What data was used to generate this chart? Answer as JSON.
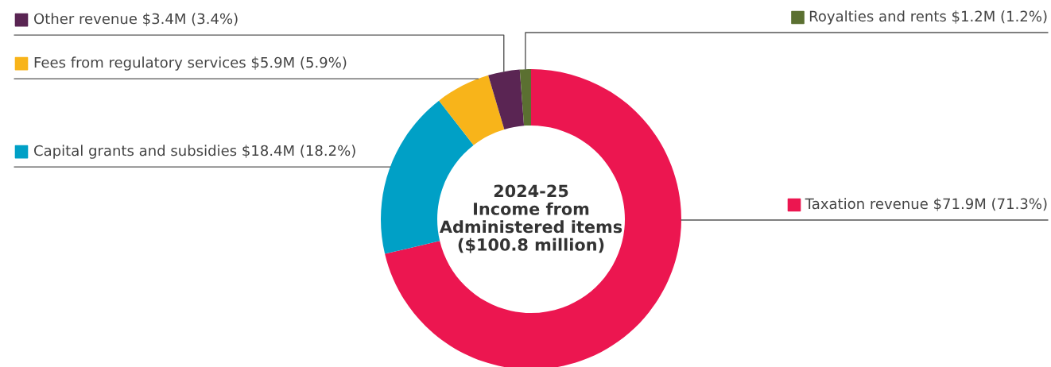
{
  "chart_data": {
    "type": "donut",
    "title": "2024-25\nIncome from\nAdministered items\n($100.8 million)",
    "categories": [
      "Taxation revenue",
      "Capital grants and subsidies",
      "Fees from regulatory services",
      "Other revenue",
      "Royalties and rents"
    ],
    "values": [
      71.3,
      18.2,
      5.9,
      3.4,
      1.2
    ],
    "legend": "left",
    "value_labels": [
      "$71.9M (71.3%)",
      "$18.4M (18.2%)",
      "$5.9M (5.9%)",
      "$3.4M (3.4%)",
      "$1.2M (1.2%)"
    ],
    "colors": [
      "#ec1650",
      "#00a0c6",
      "#f8b41a",
      "#5a2553",
      "#5b7031"
    ]
  }
}
